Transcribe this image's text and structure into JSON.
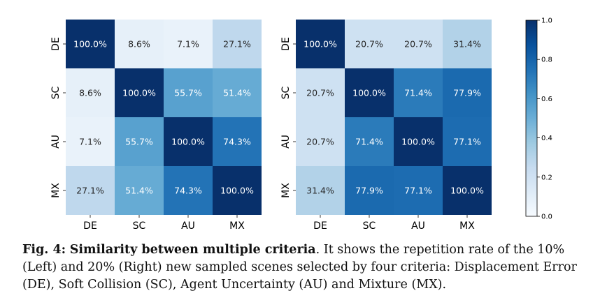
{
  "chart_data": [
    {
      "type": "heatmap",
      "name": "left",
      "x_labels": [
        "DE",
        "SC",
        "AU",
        "MX"
      ],
      "y_labels": [
        "DE",
        "SC",
        "AU",
        "MX"
      ],
      "values": [
        [
          1.0,
          0.086,
          0.071,
          0.271
        ],
        [
          0.086,
          1.0,
          0.557,
          0.514
        ],
        [
          0.071,
          0.557,
          1.0,
          0.743
        ],
        [
          0.271,
          0.514,
          0.743,
          1.0
        ]
      ],
      "labels": [
        [
          "100.0%",
          "8.6%",
          "7.1%",
          "27.1%"
        ],
        [
          "8.6%",
          "100.0%",
          "55.7%",
          "51.4%"
        ],
        [
          "7.1%",
          "55.7%",
          "100.0%",
          "74.3%"
        ],
        [
          "27.1%",
          "51.4%",
          "74.3%",
          "100.0%"
        ]
      ]
    },
    {
      "type": "heatmap",
      "name": "right",
      "x_labels": [
        "DE",
        "SC",
        "AU",
        "MX"
      ],
      "y_labels": [
        "DE",
        "SC",
        "AU",
        "MX"
      ],
      "values": [
        [
          1.0,
          0.207,
          0.207,
          0.314
        ],
        [
          0.207,
          1.0,
          0.714,
          0.779
        ],
        [
          0.207,
          0.714,
          1.0,
          0.771
        ],
        [
          0.314,
          0.779,
          0.771,
          1.0
        ]
      ],
      "labels": [
        [
          "100.0%",
          "20.7%",
          "20.7%",
          "31.4%"
        ],
        [
          "20.7%",
          "100.0%",
          "71.4%",
          "77.9%"
        ],
        [
          "20.7%",
          "71.4%",
          "100.0%",
          "77.1%"
        ],
        [
          "31.4%",
          "77.9%",
          "77.1%",
          "100.0%"
        ]
      ]
    }
  ],
  "colorbar": {
    "ticks": [
      "0.0",
      "0.2",
      "0.4",
      "0.6",
      "0.8",
      "1.0"
    ],
    "colormap": "Blues",
    "range": [
      0,
      1
    ]
  },
  "caption": {
    "label": "Fig. 4:",
    "title": "Similarity between multiple criteria",
    "body": ". It shows the repetition rate of the 10% (Left) and 20% (Right) new sampled scenes selected by four criteria: Displacement Error (DE), Soft Collision (SC), Agent Uncertainty (AU) and Mixture (MX)."
  }
}
